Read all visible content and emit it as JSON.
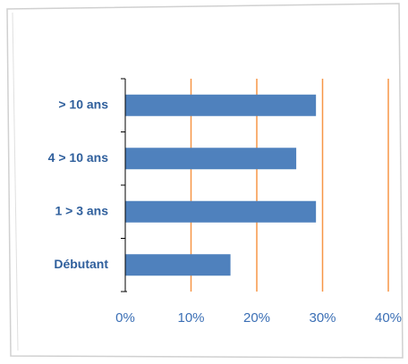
{
  "chart_data": {
    "type": "hbar",
    "categories": [
      "> 10 ans",
      "4 > 10 ans",
      "1 > 3 ans",
      "Débutant"
    ],
    "values": [
      29,
      26,
      29,
      16
    ],
    "color": "#4f81bd",
    "grid_color": "#f79646",
    "xlim": [
      0,
      40
    ],
    "xticks": [
      {
        "value": 0,
        "label": "0%"
      },
      {
        "value": 10,
        "label": "10%"
      },
      {
        "value": 20,
        "label": "20%"
      },
      {
        "value": 30,
        "label": "30%"
      },
      {
        "value": 40,
        "label": "40%"
      }
    ],
    "grid": true
  }
}
